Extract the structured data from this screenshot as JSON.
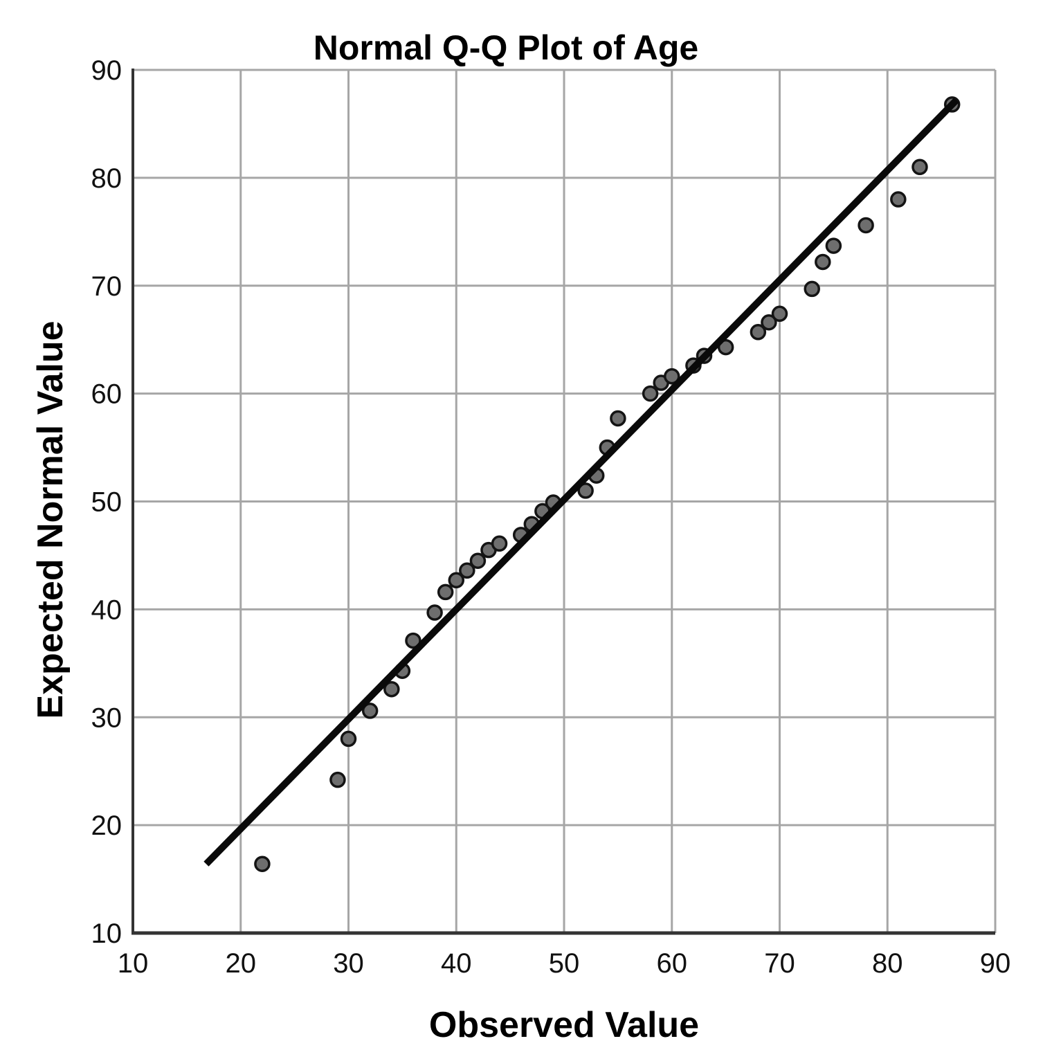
{
  "colors": {
    "background": "#ffffff",
    "grid": "#a6a6a6",
    "spine": "#333333",
    "fit_line": "#0a0a0a",
    "point_fill": "#6e6e6e",
    "point_stroke": "#141414",
    "text": "#000000"
  },
  "chart_data": {
    "type": "scatter",
    "title": "Normal Q-Q Plot of Age",
    "xlabel": "Observed Value",
    "ylabel": "Expected Normal Value",
    "xlim": [
      10,
      90
    ],
    "ylim": [
      10,
      90
    ],
    "xticks": [
      10,
      20,
      30,
      40,
      50,
      60,
      70,
      80,
      90
    ],
    "yticks": [
      10,
      20,
      30,
      40,
      50,
      60,
      70,
      80,
      90
    ],
    "grid": true,
    "legend": false,
    "points": [
      [
        22,
        16.4
      ],
      [
        29,
        24.2
      ],
      [
        30,
        28.0
      ],
      [
        32,
        30.6
      ],
      [
        34,
        32.6
      ],
      [
        35,
        34.3
      ],
      [
        36,
        37.1
      ],
      [
        38,
        39.7
      ],
      [
        39,
        41.6
      ],
      [
        40,
        42.7
      ],
      [
        41,
        43.6
      ],
      [
        42,
        44.5
      ],
      [
        43,
        45.5
      ],
      [
        44,
        46.1
      ],
      [
        46,
        46.9
      ],
      [
        47,
        47.9
      ],
      [
        48,
        49.1
      ],
      [
        49,
        49.9
      ],
      [
        52,
        51.0
      ],
      [
        53,
        52.4
      ],
      [
        54,
        55.0
      ],
      [
        55,
        57.7
      ],
      [
        58,
        60.0
      ],
      [
        59,
        61.0
      ],
      [
        60,
        61.6
      ],
      [
        62,
        62.6
      ],
      [
        63,
        63.5
      ],
      [
        65,
        64.3
      ],
      [
        68,
        65.7
      ],
      [
        69,
        66.6
      ],
      [
        70,
        67.4
      ],
      [
        73,
        69.7
      ],
      [
        74,
        72.2
      ],
      [
        75,
        73.7
      ],
      [
        78,
        75.6
      ],
      [
        81,
        78.0
      ],
      [
        83,
        81.0
      ],
      [
        86,
        86.8
      ]
    ],
    "fit_line": {
      "x1": 16.8,
      "y1": 16.4,
      "x2": 86.4,
      "y2": 87.2
    }
  }
}
